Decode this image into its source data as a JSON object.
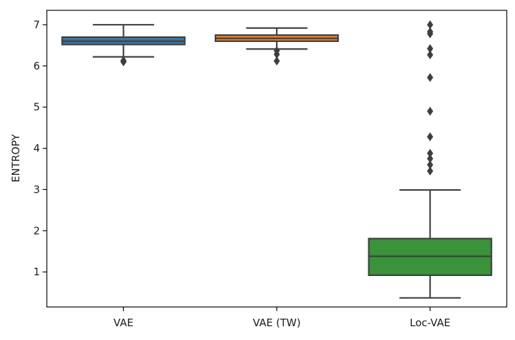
{
  "chart_data": {
    "type": "boxplot",
    "title": "",
    "xlabel": "",
    "ylabel": "ENTROPY",
    "ylim": [
      0.15,
      7.35
    ],
    "yticks": [
      1,
      2,
      3,
      4,
      5,
      6,
      7
    ],
    "ytick_labels": [
      "1",
      "2",
      "3",
      "4",
      "5",
      "6",
      "7"
    ],
    "categories": [
      "VAE",
      "VAE (TW)",
      "Loc-VAE"
    ],
    "colors": [
      "#3a75a8",
      "#e1812c",
      "#3a923a"
    ],
    "edge_color": "#3f3f3f",
    "boxes": [
      {
        "name": "VAE",
        "whisker_low": 6.22,
        "q1": 6.52,
        "median": 6.6,
        "q3": 6.7,
        "whisker_high": 7.0,
        "outliers": [
          6.1,
          6.13
        ]
      },
      {
        "name": "VAE (TW)",
        "whisker_low": 6.41,
        "q1": 6.6,
        "median": 6.67,
        "q3": 6.75,
        "whisker_high": 6.92,
        "outliers": [
          6.12,
          6.28,
          6.37
        ]
      },
      {
        "name": "Loc-VAE",
        "whisker_low": 0.37,
        "q1": 0.92,
        "median": 1.38,
        "q3": 1.81,
        "whisker_high": 2.99,
        "outliers": [
          3.45,
          3.6,
          3.75,
          3.88,
          4.28,
          4.9,
          5.72,
          6.27,
          6.42,
          6.78,
          6.83,
          7.0
        ]
      }
    ]
  }
}
